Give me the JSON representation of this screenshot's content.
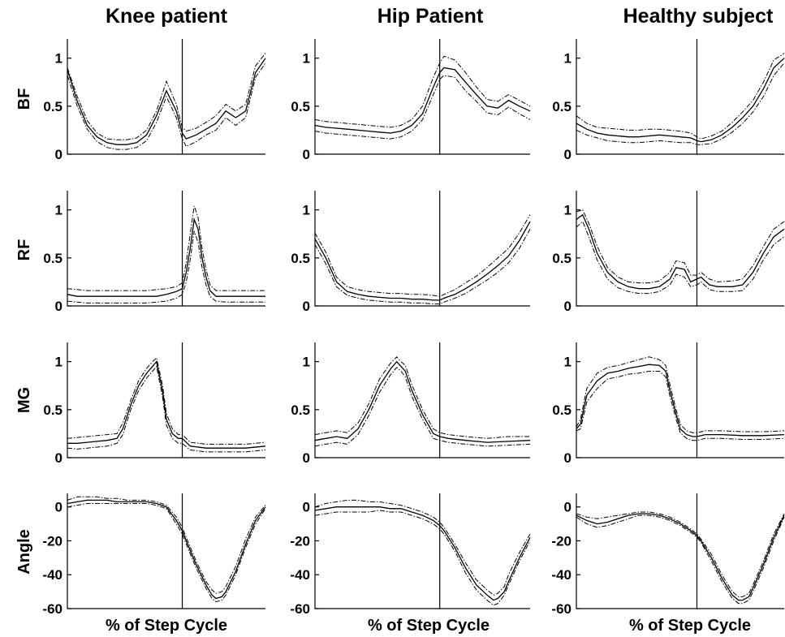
{
  "figure": {
    "columns": [
      "Knee patient",
      "Hip Patient",
      "Healthy subject"
    ],
    "rows": [
      "BF",
      "RF",
      "MG",
      "Angle"
    ],
    "xlabel": "% of Step Cycle"
  },
  "chart_data": {
    "type": "line",
    "x_domain": [
      0,
      100
    ],
    "ticks": {
      "emg": [
        0,
        0.5,
        1
      ],
      "emg_labels": [
        "0",
        "0.5",
        "1"
      ],
      "angle": [
        0,
        -20,
        -40,
        -60
      ],
      "angle_labels": [
        "0",
        "-20",
        "-40",
        "-60"
      ]
    },
    "ylim": {
      "emg": [
        0,
        1.2
      ],
      "angle": [
        -60,
        8
      ]
    },
    "series_styles": [
      "mean",
      "upper-band",
      "lower-band"
    ],
    "panels": [
      {
        "column": 0,
        "row": 0,
        "divider": 58,
        "x": [
          0,
          5,
          10,
          15,
          20,
          25,
          30,
          35,
          40,
          45,
          50,
          55,
          58,
          60,
          65,
          70,
          75,
          80,
          85,
          90,
          95,
          100
        ],
        "mean": [
          0.88,
          0.55,
          0.3,
          0.18,
          0.12,
          0.1,
          0.1,
          0.12,
          0.2,
          0.4,
          0.66,
          0.45,
          0.22,
          0.16,
          0.2,
          0.26,
          0.32,
          0.45,
          0.38,
          0.45,
          0.85,
          1.0
        ],
        "upper": [
          0.9,
          0.6,
          0.35,
          0.22,
          0.16,
          0.15,
          0.15,
          0.17,
          0.25,
          0.45,
          0.76,
          0.52,
          0.28,
          0.24,
          0.27,
          0.33,
          0.4,
          0.52,
          0.45,
          0.52,
          0.92,
          1.05
        ],
        "lower": [
          0.82,
          0.5,
          0.26,
          0.13,
          0.07,
          0.05,
          0.05,
          0.07,
          0.14,
          0.33,
          0.6,
          0.38,
          0.16,
          0.08,
          0.13,
          0.2,
          0.25,
          0.38,
          0.3,
          0.38,
          0.8,
          0.95
        ]
      },
      {
        "column": 1,
        "row": 0,
        "divider": 58,
        "x": [
          0,
          5,
          10,
          15,
          20,
          25,
          30,
          35,
          40,
          45,
          50,
          55,
          58,
          60,
          65,
          70,
          75,
          80,
          85,
          90,
          95,
          100
        ],
        "mean": [
          0.3,
          0.28,
          0.27,
          0.26,
          0.25,
          0.24,
          0.23,
          0.22,
          0.24,
          0.3,
          0.42,
          0.7,
          0.85,
          0.9,
          0.88,
          0.75,
          0.62,
          0.5,
          0.48,
          0.56,
          0.5,
          0.45
        ],
        "upper": [
          0.36,
          0.34,
          0.33,
          0.32,
          0.31,
          0.3,
          0.29,
          0.28,
          0.3,
          0.36,
          0.5,
          0.8,
          0.95,
          1.02,
          0.98,
          0.85,
          0.7,
          0.57,
          0.55,
          0.62,
          0.56,
          0.5
        ],
        "lower": [
          0.24,
          0.22,
          0.21,
          0.2,
          0.19,
          0.18,
          0.17,
          0.16,
          0.18,
          0.24,
          0.36,
          0.62,
          0.78,
          0.82,
          0.8,
          0.66,
          0.55,
          0.43,
          0.41,
          0.49,
          0.42,
          0.36
        ]
      },
      {
        "column": 2,
        "row": 0,
        "divider": 58,
        "x": [
          0,
          5,
          10,
          15,
          20,
          25,
          30,
          35,
          40,
          45,
          50,
          55,
          58,
          60,
          65,
          70,
          75,
          80,
          85,
          90,
          95,
          100
        ],
        "mean": [
          0.32,
          0.26,
          0.22,
          0.2,
          0.19,
          0.18,
          0.18,
          0.19,
          0.2,
          0.19,
          0.18,
          0.17,
          0.14,
          0.13,
          0.15,
          0.2,
          0.28,
          0.38,
          0.5,
          0.68,
          0.9,
          1.0
        ],
        "upper": [
          0.4,
          0.32,
          0.28,
          0.27,
          0.26,
          0.25,
          0.25,
          0.26,
          0.26,
          0.25,
          0.24,
          0.22,
          0.18,
          0.16,
          0.19,
          0.24,
          0.33,
          0.44,
          0.56,
          0.75,
          0.98,
          1.05
        ],
        "lower": [
          0.25,
          0.2,
          0.17,
          0.14,
          0.13,
          0.12,
          0.12,
          0.13,
          0.14,
          0.13,
          0.12,
          0.12,
          0.1,
          0.1,
          0.11,
          0.16,
          0.23,
          0.32,
          0.44,
          0.6,
          0.82,
          0.95
        ]
      },
      {
        "column": 0,
        "row": 1,
        "divider": 58,
        "x": [
          0,
          5,
          10,
          15,
          20,
          25,
          30,
          35,
          40,
          45,
          50,
          55,
          58,
          60,
          62,
          64,
          66,
          68,
          70,
          72,
          75,
          80,
          85,
          90,
          95,
          100
        ],
        "mean": [
          0.12,
          0.1,
          0.1,
          0.1,
          0.1,
          0.1,
          0.1,
          0.1,
          0.1,
          0.1,
          0.12,
          0.15,
          0.18,
          0.35,
          0.6,
          0.9,
          0.8,
          0.5,
          0.3,
          0.16,
          0.1,
          0.1,
          0.1,
          0.1,
          0.1,
          0.1
        ],
        "upper": [
          0.18,
          0.17,
          0.16,
          0.16,
          0.16,
          0.16,
          0.16,
          0.16,
          0.16,
          0.17,
          0.18,
          0.2,
          0.24,
          0.45,
          0.75,
          1.04,
          0.92,
          0.6,
          0.38,
          0.22,
          0.16,
          0.16,
          0.16,
          0.16,
          0.16,
          0.16
        ],
        "lower": [
          0.05,
          0.04,
          0.03,
          0.03,
          0.03,
          0.03,
          0.03,
          0.03,
          0.03,
          0.04,
          0.05,
          0.08,
          0.12,
          0.25,
          0.48,
          0.78,
          0.66,
          0.4,
          0.22,
          0.1,
          0.05,
          0.04,
          0.04,
          0.04,
          0.04,
          0.04
        ]
      },
      {
        "column": 1,
        "row": 1,
        "divider": 58,
        "x": [
          0,
          5,
          10,
          15,
          20,
          25,
          30,
          35,
          40,
          45,
          50,
          55,
          58,
          60,
          65,
          70,
          75,
          80,
          85,
          90,
          95,
          100
        ],
        "mean": [
          0.7,
          0.5,
          0.25,
          0.15,
          0.12,
          0.1,
          0.09,
          0.08,
          0.08,
          0.07,
          0.07,
          0.06,
          0.06,
          0.08,
          0.12,
          0.18,
          0.25,
          0.33,
          0.42,
          0.52,
          0.68,
          0.88
        ],
        "upper": [
          0.76,
          0.56,
          0.3,
          0.2,
          0.17,
          0.15,
          0.14,
          0.13,
          0.13,
          0.12,
          0.12,
          0.11,
          0.1,
          0.12,
          0.17,
          0.24,
          0.31,
          0.4,
          0.5,
          0.6,
          0.76,
          0.95
        ],
        "lower": [
          0.64,
          0.44,
          0.2,
          0.11,
          0.08,
          0.06,
          0.05,
          0.04,
          0.04,
          0.03,
          0.03,
          0.02,
          0.02,
          0.04,
          0.08,
          0.13,
          0.2,
          0.27,
          0.35,
          0.45,
          0.6,
          0.8
        ]
      },
      {
        "column": 2,
        "row": 1,
        "divider": 58,
        "x": [
          0,
          3,
          6,
          10,
          15,
          20,
          25,
          30,
          35,
          40,
          45,
          48,
          52,
          55,
          58,
          60,
          64,
          68,
          75,
          80,
          85,
          90,
          95,
          100
        ],
        "mean": [
          0.9,
          0.95,
          0.8,
          0.55,
          0.35,
          0.25,
          0.2,
          0.18,
          0.18,
          0.2,
          0.28,
          0.4,
          0.38,
          0.25,
          0.28,
          0.3,
          0.22,
          0.2,
          0.2,
          0.22,
          0.35,
          0.55,
          0.72,
          0.8
        ],
        "upper": [
          0.98,
          1.0,
          0.86,
          0.62,
          0.4,
          0.3,
          0.25,
          0.24,
          0.24,
          0.26,
          0.35,
          0.47,
          0.45,
          0.32,
          0.32,
          0.35,
          0.28,
          0.25,
          0.26,
          0.28,
          0.42,
          0.62,
          0.8,
          0.88
        ],
        "lower": [
          0.82,
          0.88,
          0.72,
          0.48,
          0.28,
          0.19,
          0.15,
          0.13,
          0.13,
          0.15,
          0.22,
          0.33,
          0.3,
          0.2,
          0.22,
          0.25,
          0.17,
          0.15,
          0.15,
          0.16,
          0.28,
          0.48,
          0.64,
          0.72
        ]
      },
      {
        "column": 0,
        "row": 2,
        "divider": 58,
        "x": [
          0,
          5,
          10,
          15,
          20,
          25,
          28,
          32,
          36,
          40,
          43,
          45,
          48,
          50,
          53,
          56,
          58,
          62,
          70,
          80,
          90,
          100
        ],
        "mean": [
          0.15,
          0.15,
          0.16,
          0.17,
          0.18,
          0.2,
          0.3,
          0.55,
          0.75,
          0.88,
          0.95,
          1.0,
          0.7,
          0.4,
          0.25,
          0.2,
          0.2,
          0.12,
          0.1,
          0.1,
          0.1,
          0.12
        ],
        "upper": [
          0.2,
          0.21,
          0.22,
          0.23,
          0.24,
          0.25,
          0.36,
          0.6,
          0.8,
          0.93,
          1.0,
          1.04,
          0.76,
          0.46,
          0.3,
          0.24,
          0.24,
          0.16,
          0.14,
          0.14,
          0.14,
          0.16
        ],
        "lower": [
          0.1,
          0.09,
          0.1,
          0.11,
          0.12,
          0.15,
          0.24,
          0.5,
          0.7,
          0.83,
          0.9,
          0.95,
          0.64,
          0.34,
          0.2,
          0.15,
          0.15,
          0.08,
          0.06,
          0.06,
          0.06,
          0.08
        ]
      },
      {
        "column": 1,
        "row": 2,
        "divider": 58,
        "x": [
          0,
          5,
          10,
          15,
          20,
          25,
          30,
          35,
          38,
          40,
          42,
          45,
          50,
          55,
          58,
          62,
          70,
          80,
          90,
          100
        ],
        "mean": [
          0.18,
          0.2,
          0.22,
          0.2,
          0.3,
          0.5,
          0.75,
          0.92,
          1.0,
          0.95,
          0.9,
          0.7,
          0.45,
          0.25,
          0.22,
          0.2,
          0.18,
          0.16,
          0.17,
          0.18
        ],
        "upper": [
          0.24,
          0.26,
          0.28,
          0.26,
          0.36,
          0.56,
          0.82,
          0.98,
          1.05,
          1.0,
          0.96,
          0.76,
          0.5,
          0.3,
          0.26,
          0.24,
          0.22,
          0.2,
          0.22,
          0.22
        ],
        "lower": [
          0.12,
          0.14,
          0.16,
          0.14,
          0.24,
          0.44,
          0.68,
          0.86,
          0.94,
          0.9,
          0.84,
          0.64,
          0.4,
          0.2,
          0.18,
          0.16,
          0.14,
          0.12,
          0.13,
          0.14
        ]
      },
      {
        "column": 2,
        "row": 2,
        "divider": 58,
        "x": [
          0,
          2,
          5,
          10,
          15,
          20,
          25,
          30,
          35,
          40,
          43,
          45,
          48,
          50,
          53,
          56,
          58,
          62,
          70,
          80,
          90,
          100
        ],
        "mean": [
          0.3,
          0.35,
          0.65,
          0.8,
          0.88,
          0.9,
          0.93,
          0.95,
          0.97,
          0.96,
          0.9,
          0.7,
          0.45,
          0.3,
          0.24,
          0.22,
          0.22,
          0.24,
          0.24,
          0.23,
          0.23,
          0.24
        ],
        "upper": [
          0.32,
          0.4,
          0.72,
          0.88,
          0.94,
          0.96,
          0.99,
          1.02,
          1.05,
          1.02,
          0.96,
          0.76,
          0.5,
          0.35,
          0.28,
          0.26,
          0.26,
          0.28,
          0.28,
          0.27,
          0.27,
          0.28
        ],
        "lower": [
          0.28,
          0.3,
          0.58,
          0.72,
          0.82,
          0.84,
          0.87,
          0.88,
          0.9,
          0.9,
          0.84,
          0.64,
          0.4,
          0.26,
          0.2,
          0.18,
          0.18,
          0.2,
          0.2,
          0.19,
          0.19,
          0.2
        ]
      },
      {
        "column": 0,
        "row": 3,
        "divider": 58,
        "x": [
          0,
          5,
          10,
          15,
          20,
          25,
          30,
          35,
          40,
          45,
          50,
          55,
          58,
          60,
          65,
          70,
          73,
          75,
          78,
          80,
          85,
          90,
          95,
          100
        ],
        "mean": [
          2,
          3,
          4,
          4,
          4,
          3,
          3,
          3,
          3,
          2,
          0,
          -8,
          -14,
          -20,
          -34,
          -46,
          -52,
          -54,
          -53,
          -50,
          -38,
          -22,
          -8,
          0
        ],
        "upper": [
          4,
          6,
          6,
          6,
          5,
          5,
          4,
          4,
          4,
          3,
          1,
          -6,
          -12,
          -18,
          -32,
          -44,
          -49,
          -51,
          -50,
          -47,
          -35,
          -19,
          -6,
          1
        ],
        "lower": [
          0,
          1,
          2,
          2,
          2,
          2,
          2,
          2,
          2,
          1,
          -1,
          -10,
          -16,
          -22,
          -36,
          -48,
          -54,
          -56,
          -55,
          -52,
          -40,
          -24,
          -10,
          -1
        ]
      },
      {
        "column": 1,
        "row": 3,
        "divider": 58,
        "x": [
          0,
          5,
          10,
          15,
          20,
          25,
          30,
          35,
          40,
          45,
          50,
          55,
          58,
          60,
          65,
          70,
          75,
          80,
          83,
          85,
          88,
          90,
          95,
          100
        ],
        "mean": [
          -2,
          -1,
          0,
          0,
          0,
          0,
          0,
          -1,
          -1,
          -3,
          -5,
          -8,
          -11,
          -14,
          -24,
          -36,
          -46,
          -52,
          -55,
          -54,
          -50,
          -44,
          -30,
          -18
        ],
        "upper": [
          0,
          2,
          3,
          4,
          4,
          3,
          3,
          2,
          1,
          -1,
          -3,
          -6,
          -9,
          -12,
          -22,
          -33,
          -43,
          -49,
          -52,
          -51,
          -47,
          -40,
          -27,
          -16
        ],
        "lower": [
          -5,
          -4,
          -3,
          -3,
          -3,
          -3,
          -2,
          -3,
          -3,
          -5,
          -7,
          -10,
          -13,
          -16,
          -26,
          -39,
          -49,
          -55,
          -58,
          -57,
          -52,
          -46,
          -32,
          -20
        ]
      },
      {
        "column": 2,
        "row": 3,
        "divider": 58,
        "x": [
          0,
          5,
          10,
          15,
          20,
          25,
          30,
          35,
          40,
          45,
          50,
          55,
          58,
          60,
          65,
          70,
          75,
          78,
          80,
          83,
          85,
          90,
          95,
          100
        ],
        "mean": [
          -5,
          -8,
          -10,
          -9,
          -7,
          -5,
          -4,
          -4,
          -5,
          -7,
          -10,
          -14,
          -17,
          -20,
          -30,
          -42,
          -52,
          -55,
          -55,
          -53,
          -48,
          -34,
          -18,
          -5
        ],
        "upper": [
          -4,
          -6,
          -7,
          -6,
          -5,
          -4,
          -3,
          -3,
          -4,
          -6,
          -9,
          -13,
          -16,
          -19,
          -28,
          -40,
          -50,
          -53,
          -53,
          -51,
          -46,
          -32,
          -16,
          -4
        ],
        "lower": [
          -6,
          -10,
          -12,
          -11,
          -9,
          -7,
          -5,
          -5,
          -6,
          -8,
          -11,
          -15,
          -18,
          -21,
          -32,
          -44,
          -54,
          -57,
          -57,
          -55,
          -50,
          -36,
          -20,
          -6
        ]
      }
    ]
  }
}
